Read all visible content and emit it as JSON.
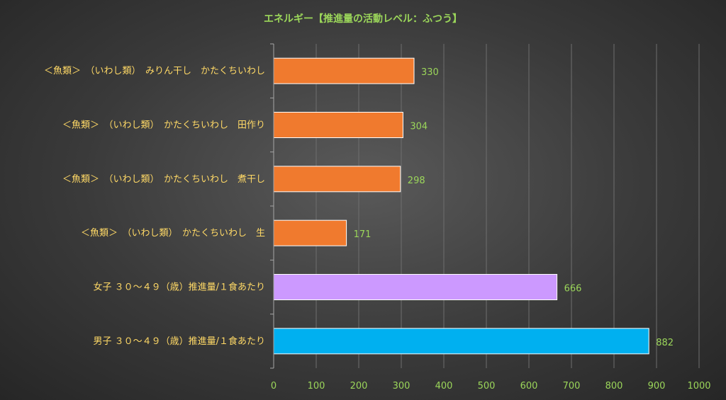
{
  "chart_data": {
    "type": "bar",
    "orientation": "horizontal",
    "title": "エネルギー【推進量の活動レベル：ふつう】",
    "categories": [
      "＜魚類＞　（いわし類）　みりん干し　かたくちいわし",
      "＜魚類＞　（いわし類）　かたくちいわし　田作り",
      "＜魚類＞　（いわし類）　かたくちいわし　煮干し",
      "＜魚類＞　（いわし類）　かたくちいわし　生",
      "女子 ３０～４９（歳）推進量/１食あたり",
      "男子 ３０～４９（歳）推進量/１食あたり"
    ],
    "values": [
      330,
      304,
      298,
      171,
      666,
      882
    ],
    "bar_colors": [
      "#f07a2e",
      "#f07a2e",
      "#f07a2e",
      "#f07a2e",
      "#cc99ff",
      "#00b0f0"
    ],
    "xlim": [
      0,
      1000
    ],
    "xticks": [
      0,
      100,
      200,
      300,
      400,
      500,
      600,
      700,
      800,
      900,
      1000
    ],
    "grid": true,
    "xlabel": "",
    "ylabel": "",
    "colors": {
      "title": "#9bd65a",
      "category_label": "#ffd966",
      "data_label": "#9bd65a",
      "tick_label": "#9bd65a",
      "gridline": "#6e6e6e",
      "axis": "#a6a6a6"
    }
  }
}
